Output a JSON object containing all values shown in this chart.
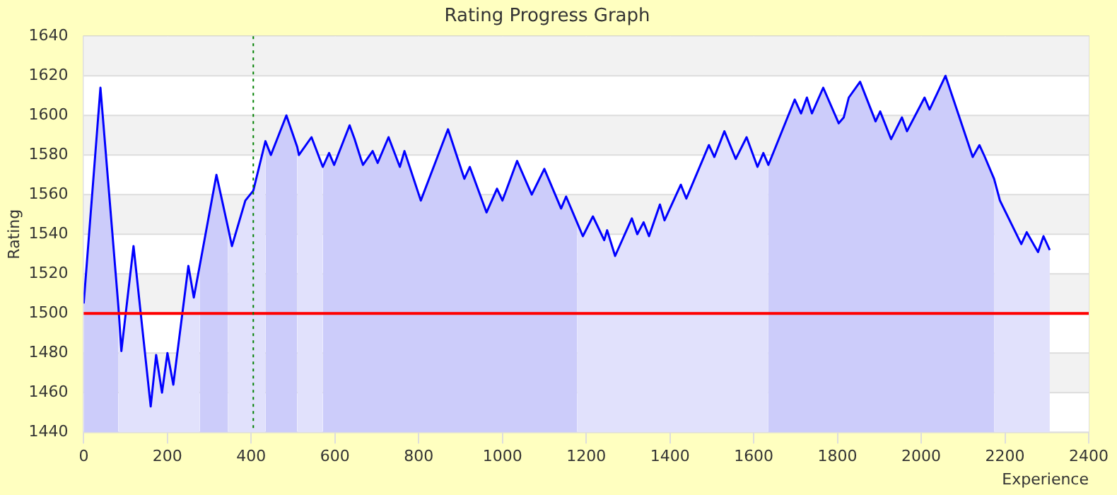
{
  "chart_data": {
    "type": "line",
    "title": "Rating Progress Graph",
    "xlabel": "Experience",
    "ylabel": "Rating",
    "x": [
      0,
      40,
      83,
      90,
      119,
      160,
      173,
      187,
      200,
      214,
      250,
      263,
      277,
      317,
      344,
      354,
      386,
      405,
      434,
      447,
      484,
      510,
      514,
      544,
      571,
      586,
      598,
      635,
      647,
      662,
      667,
      690,
      702,
      728,
      755,
      766,
      805,
      870,
      909,
      922,
      962,
      987,
      1000,
      1035,
      1070,
      1100,
      1140,
      1152,
      1178,
      1192,
      1216,
      1243,
      1250,
      1269,
      1309,
      1322,
      1337,
      1350,
      1376,
      1387,
      1426,
      1439,
      1493,
      1506,
      1530,
      1557,
      1583,
      1609,
      1623,
      1635,
      1698,
      1713,
      1727,
      1739,
      1766,
      1803,
      1815,
      1827,
      1854,
      1891,
      1902,
      1928,
      1954,
      1966,
      2008,
      2020,
      2058,
      2123,
      2139,
      2152,
      2174,
      2188,
      2239,
      2252,
      2279,
      2292,
      2307
    ],
    "series": [
      {
        "type": "area",
        "color": "#ccccfa",
        "values": [
          1505,
          1614,
          1503,
          null,
          null,
          null,
          null,
          null,
          null,
          null,
          null,
          null,
          1524,
          1570,
          1544,
          null,
          null,
          null,
          1587,
          1580,
          1600,
          1584,
          null,
          null,
          1574,
          1581,
          1575,
          1595,
          1588,
          1578,
          1575,
          1582,
          1576,
          1589,
          1574,
          1582,
          1557,
          1593,
          1568,
          1574,
          1551,
          1563,
          1557,
          1577,
          1560,
          1573,
          1553,
          1559,
          1546,
          null,
          null,
          null,
          null,
          null,
          null,
          null,
          null,
          null,
          null,
          null,
          null,
          null,
          null,
          null,
          null,
          null,
          null,
          null,
          null,
          1575,
          1608,
          1601,
          1609,
          1601,
          1614,
          1596,
          1599,
          1609,
          1617,
          1597,
          1602,
          1588,
          1599,
          1592,
          1609,
          1603,
          1620,
          1579,
          1585,
          1579,
          1568,
          null,
          null,
          null,
          null,
          null,
          null
        ]
      },
      {
        "type": "area",
        "color": "#e1e1fc",
        "values": [
          null,
          null,
          1503,
          1481,
          1534,
          1453,
          1479,
          1460,
          1480,
          1464,
          1524,
          1508,
          1524,
          null,
          1544,
          1534,
          1557,
          1562,
          1587,
          null,
          null,
          1584,
          1580,
          1589,
          1574,
          null,
          null,
          null,
          null,
          null,
          null,
          null,
          null,
          null,
          null,
          null,
          null,
          null,
          null,
          null,
          null,
          null,
          null,
          null,
          null,
          null,
          null,
          null,
          1546,
          1539,
          1549,
          1537,
          1542,
          1529,
          1548,
          1540,
          1546,
          1539,
          1555,
          1547,
          1565,
          1558,
          1585,
          1579,
          1592,
          1578,
          1589,
          1574,
          1581,
          1575,
          null,
          null,
          null,
          null,
          null,
          null,
          null,
          null,
          null,
          null,
          null,
          null,
          null,
          null,
          null,
          null,
          null,
          null,
          null,
          null,
          1568,
          1557,
          1535,
          1541,
          1531,
          1539,
          1532
        ]
      },
      {
        "type": "line",
        "color": "#0000ff",
        "values": [
          1505,
          1614,
          1503,
          1481,
          1534,
          1453,
          1479,
          1460,
          1480,
          1464,
          1524,
          1508,
          1524,
          1570,
          1544,
          1534,
          1557,
          1562,
          1587,
          1580,
          1600,
          1584,
          1580,
          1589,
          1574,
          1581,
          1575,
          1595,
          1588,
          1578,
          1575,
          1582,
          1576,
          1589,
          1574,
          1582,
          1557,
          1593,
          1568,
          1574,
          1551,
          1563,
          1557,
          1577,
          1560,
          1573,
          1553,
          1559,
          1546,
          1539,
          1549,
          1537,
          1542,
          1529,
          1548,
          1540,
          1546,
          1539,
          1555,
          1547,
          1565,
          1558,
          1585,
          1579,
          1592,
          1578,
          1589,
          1574,
          1581,
          1575,
          1608,
          1601,
          1609,
          1601,
          1614,
          1596,
          1599,
          1609,
          1617,
          1597,
          1602,
          1588,
          1599,
          1592,
          1609,
          1603,
          1620,
          1579,
          1585,
          1579,
          1568,
          1557,
          1535,
          1541,
          1531,
          1539,
          1532
        ]
      }
    ],
    "xlim": [
      0,
      2400
    ],
    "xticks": [
      0,
      200,
      400,
      600,
      800,
      1000,
      1200,
      1400,
      1600,
      1800,
      2000,
      2200,
      2400
    ],
    "ylim": [
      1440,
      1640
    ],
    "yticks": [
      1440,
      1460,
      1480,
      1500,
      1520,
      1540,
      1560,
      1580,
      1600,
      1620,
      1640
    ],
    "ref_lines": [
      {
        "axis": "y",
        "value": 1500,
        "color": "#ff0000",
        "line_style": "solid"
      },
      {
        "axis": "x",
        "value": 405,
        "color": "#008000",
        "line_style": "dotted"
      }
    ],
    "grid": true,
    "legend": false,
    "marker": "none"
  }
}
